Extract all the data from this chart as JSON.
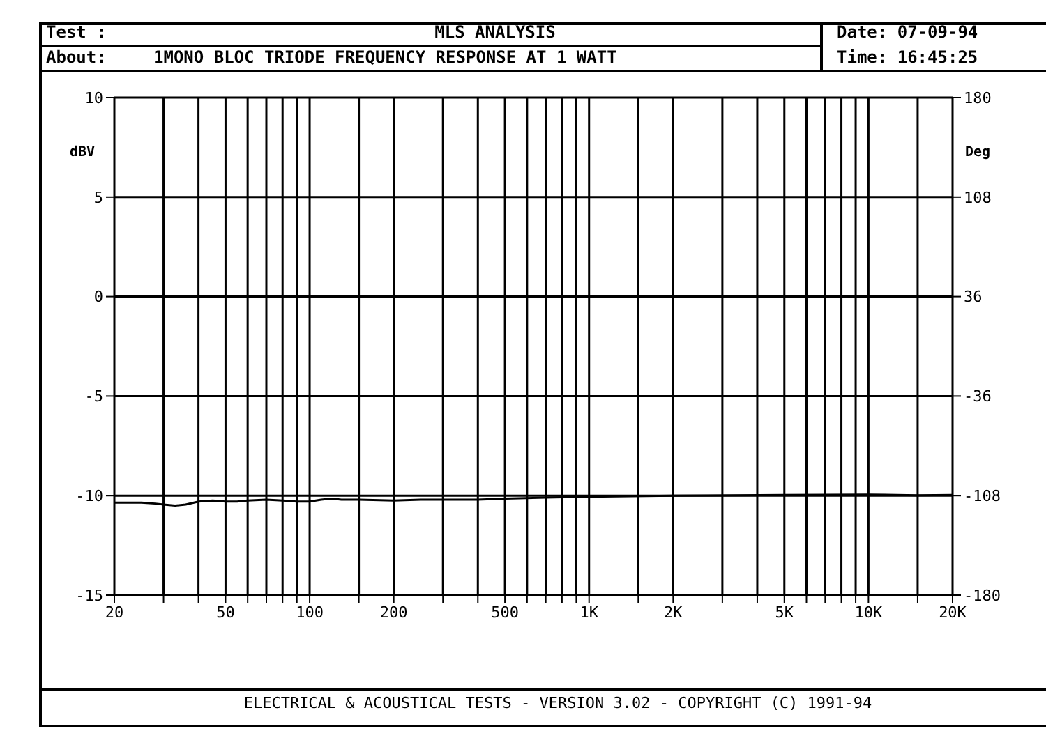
{
  "chart_data": {
    "type": "line",
    "title": "MLS ANALYSIS",
    "subtitle": "1MONO BLOC TRIODE FREQUENCY RESPONSE AT 1 WATT",
    "annotations": [
      "Test :",
      "About:",
      "Date: 07-09-94",
      "Time: 16:45:25",
      "ELECTRICAL & ACOUSTICAL TESTS - VERSION 3.02 - COPYRIGHT (C) 1991-94"
    ],
    "ylabel": "dBV",
    "y2label": "Deg",
    "log": "x",
    "grid": true,
    "x": [
      20,
      25,
      28,
      30,
      33,
      36,
      40,
      45,
      50,
      55,
      60,
      70,
      80,
      90,
      100,
      110,
      120,
      130,
      150,
      200,
      250,
      300,
      400,
      500,
      700,
      1000,
      2000,
      5000,
      10000,
      15000,
      20000
    ],
    "series": [
      {
        "color": "#000000",
        "values": [
          -10.35,
          -10.35,
          -10.4,
          -10.45,
          -10.5,
          -10.45,
          -10.3,
          -10.25,
          -10.3,
          -10.3,
          -10.25,
          -10.2,
          -10.25,
          -10.3,
          -10.3,
          -10.2,
          -10.15,
          -10.2,
          -10.2,
          -10.25,
          -10.2,
          -10.2,
          -10.2,
          -10.15,
          -10.1,
          -10.05,
          -10.0,
          -9.97,
          -9.95,
          -9.98,
          -9.97
        ]
      }
    ],
    "xlim": [
      20,
      20000
    ],
    "xticks": [
      20,
      {
        "value": 30,
        "label": null
      },
      {
        "value": 40,
        "label": null
      },
      50,
      {
        "value": 60,
        "label": null
      },
      {
        "value": 70,
        "label": null
      },
      {
        "value": 80,
        "label": null
      },
      {
        "value": 90,
        "label": null
      },
      100,
      {
        "value": 150,
        "label": null
      },
      200,
      {
        "value": 300,
        "label": null
      },
      {
        "value": 400,
        "label": null
      },
      500,
      {
        "value": 600,
        "label": null
      },
      {
        "value": 700,
        "label": null
      },
      {
        "value": 800,
        "label": null
      },
      {
        "value": 900,
        "label": null
      },
      {
        "value": 1000,
        "label": "1K"
      },
      {
        "value": 1500,
        "label": null
      },
      {
        "value": 2000,
        "label": "2K"
      },
      {
        "value": 3000,
        "label": null
      },
      {
        "value": 4000,
        "label": null
      },
      {
        "value": 5000,
        "label": "5K"
      },
      {
        "value": 6000,
        "label": null
      },
      {
        "value": 7000,
        "label": null
      },
      {
        "value": 8000,
        "label": null
      },
      {
        "value": 9000,
        "label": null
      },
      {
        "value": 10000,
        "label": "10K"
      },
      {
        "value": 15000,
        "label": null
      },
      {
        "value": 20000,
        "label": "20K"
      }
    ],
    "ylim": [
      -15,
      10
    ],
    "yticks": [
      -15,
      -10,
      -5,
      0,
      5,
      10
    ],
    "y2lim": [
      -180,
      180
    ],
    "y2ticks": [
      -180,
      -108,
      -36,
      36,
      108,
      180
    ]
  }
}
